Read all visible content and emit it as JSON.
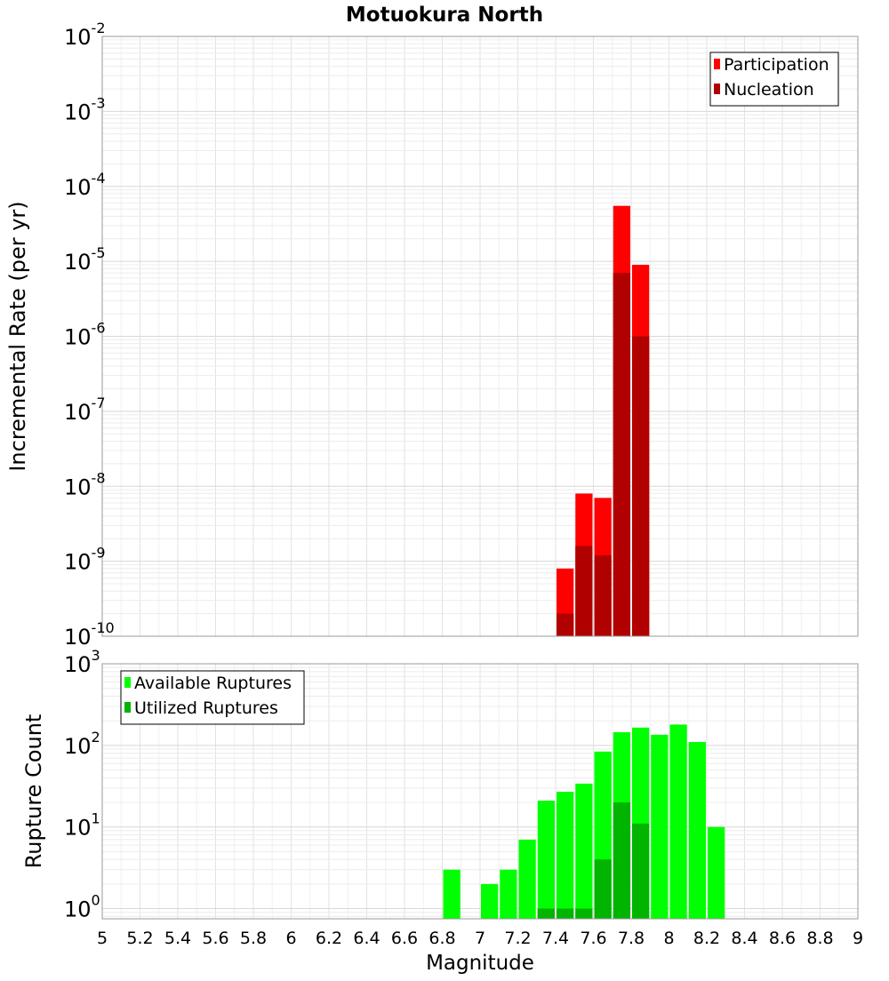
{
  "chart_data": [
    {
      "type": "bar",
      "title": "Motuokura North",
      "ylabel": "Incremental Rate (per yr)",
      "xlabel": "",
      "xlim": [
        5,
        9
      ],
      "ylim": [
        1e-10,
        0.01
      ],
      "yscale": "log",
      "bar_width": 0.1,
      "grid": true,
      "legend_position": "top-right",
      "series": [
        {
          "name": "Participation",
          "color": "#ff0000",
          "x": [
            7.45,
            7.55,
            7.65,
            7.75,
            7.85
          ],
          "values": [
            8e-10,
            8e-09,
            7e-09,
            5.5e-05,
            9e-06
          ]
        },
        {
          "name": "Nucleation",
          "color": "#b00000",
          "x": [
            7.45,
            7.55,
            7.65,
            7.75,
            7.85
          ],
          "values": [
            2e-10,
            1.6e-09,
            1.2e-09,
            7e-06,
            1e-06
          ]
        }
      ]
    },
    {
      "type": "bar",
      "title": "",
      "ylabel": "Rupture Count",
      "xlabel": "Magnitude",
      "xlim": [
        5,
        9
      ],
      "ylim": [
        0.75,
        1000
      ],
      "yscale": "log",
      "bar_width": 0.1,
      "grid": true,
      "legend_position": "top-left",
      "x_ticks": [
        "5",
        "5.2",
        "5.4",
        "5.6",
        "5.8",
        "6",
        "6.2",
        "6.4",
        "6.6",
        "6.8",
        "7",
        "7.2",
        "7.4",
        "7.6",
        "7.8",
        "8",
        "8.2",
        "8.4",
        "8.6",
        "8.8",
        "9"
      ],
      "series": [
        {
          "name": "Available Ruptures",
          "color": "#00ff00",
          "x": [
            6.85,
            7.05,
            7.15,
            7.25,
            7.35,
            7.45,
            7.55,
            7.65,
            7.75,
            7.85,
            7.95,
            8.05,
            8.15,
            8.25
          ],
          "values": [
            3,
            2,
            3,
            7,
            21,
            27,
            34,
            84,
            145,
            165,
            135,
            180,
            110,
            10
          ]
        },
        {
          "name": "Utilized Ruptures",
          "color": "#00b400",
          "x": [
            7.35,
            7.45,
            7.55,
            7.65,
            7.75,
            7.85
          ],
          "values": [
            1,
            1,
            1,
            4,
            20,
            11
          ]
        }
      ]
    }
  ]
}
